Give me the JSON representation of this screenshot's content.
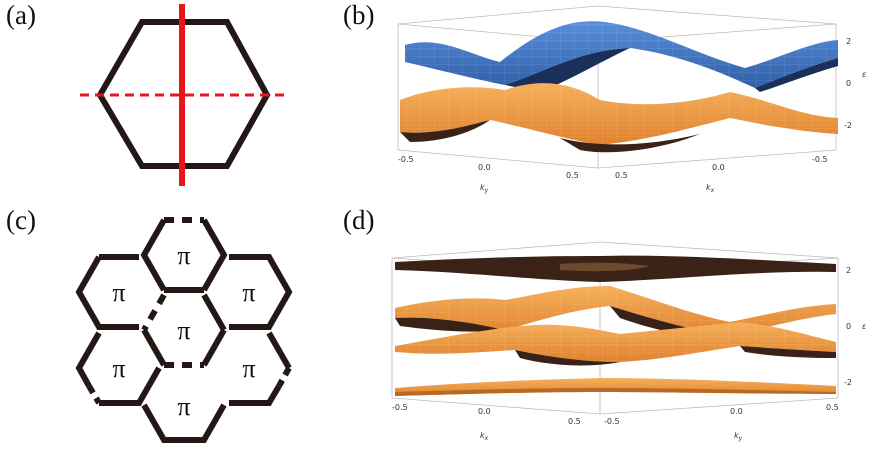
{
  "panels": {
    "a": "(a)",
    "b": "(b)",
    "c": "(c)",
    "d": "(d)"
  },
  "honeycomb": {
    "cell_label": "π",
    "cells": [
      "π",
      "π",
      "π",
      "π",
      "π",
      "π",
      "π"
    ]
  },
  "plot_b": {
    "z_ticks": [
      "2",
      "0",
      "-2"
    ],
    "z_label": "ε",
    "left_ticks": [
      "-0.5",
      "0.0",
      "0.5"
    ],
    "left_axis_label": "k",
    "left_axis_sub": "y",
    "right_ticks": [
      "0.5",
      "0.0",
      "-0.5"
    ],
    "right_axis_label": "k",
    "right_axis_sub": "x"
  },
  "plot_d": {
    "z_ticks": [
      "2",
      "0",
      "-2"
    ],
    "z_label": "ε",
    "left_ticks": [
      "-0.5",
      "0.0",
      "0.5"
    ],
    "left_axis_label": "k",
    "left_axis_sub": "x",
    "right_ticks": [
      "-0.5",
      "0.0",
      "0.5"
    ],
    "right_axis_label": "k",
    "right_axis_sub": "y"
  },
  "colors": {
    "hex_line": "#231815",
    "red_line": "#e8161b",
    "band_blue": "#3d72c4",
    "band_blue_dark": "#1a2f5a",
    "band_orange": "#f09a3e",
    "band_orange_dark": "#3a2216"
  }
}
